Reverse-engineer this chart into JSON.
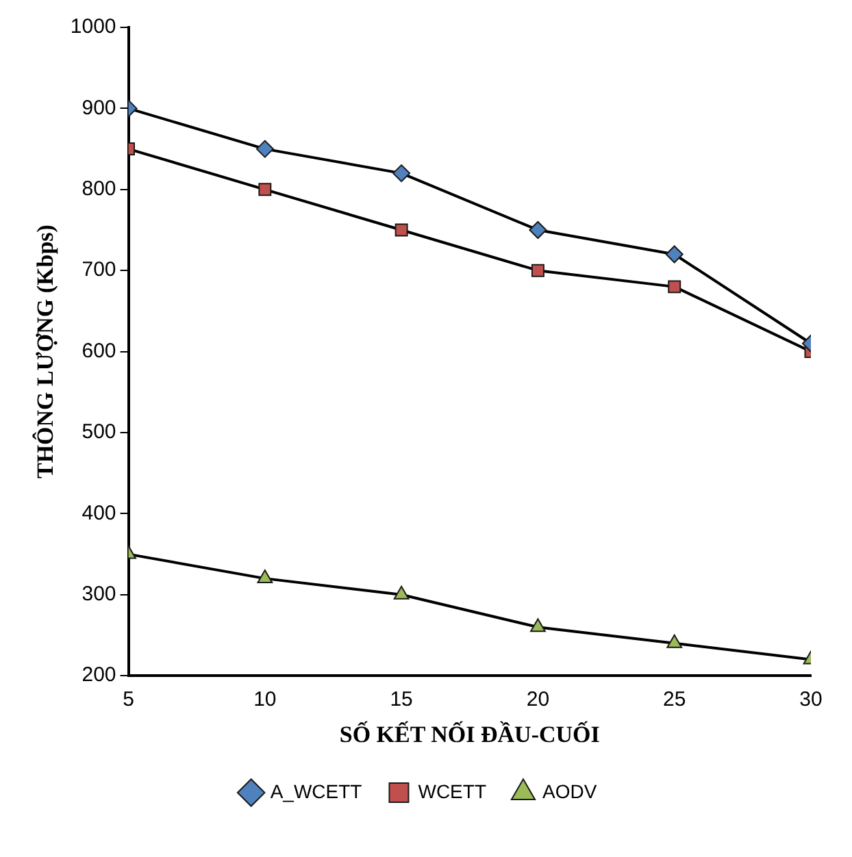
{
  "chart_data": {
    "type": "line",
    "xlabel": "SỐ KẾT NỐI ĐẦU-CUỐI",
    "ylabel": "THÔNG LƯỢNG (Kbps)",
    "x": [
      5,
      10,
      15,
      20,
      25,
      30
    ],
    "series": [
      {
        "name": "A_WCETT",
        "color": "#4f81bd",
        "marker": "diamond",
        "values": [
          900,
          850,
          820,
          750,
          720,
          610
        ]
      },
      {
        "name": "WCETT",
        "color": "#c0504d",
        "marker": "square",
        "values": [
          850,
          800,
          750,
          700,
          680,
          600
        ]
      },
      {
        "name": "AODV",
        "color": "#9bbb59",
        "marker": "triangle",
        "values": [
          350,
          320,
          300,
          260,
          240,
          220
        ]
      }
    ],
    "xlim": [
      5,
      30
    ],
    "xticks": [
      5,
      10,
      15,
      20,
      25,
      30
    ],
    "ylim": [
      200,
      1000
    ],
    "yticks": [
      200,
      300,
      400,
      500,
      600,
      700,
      800,
      900,
      1000
    ],
    "grid": false,
    "legend": "bottom",
    "line_style": "solid"
  }
}
